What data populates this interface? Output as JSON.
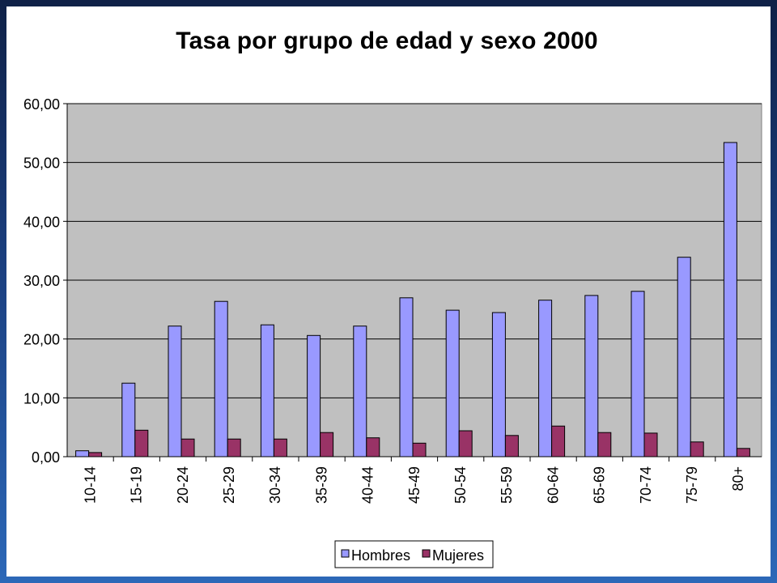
{
  "chart_data": {
    "type": "bar",
    "title": "Tasa por grupo de edad y sexo 2000",
    "categories": [
      "10-14",
      "15-19",
      "20-24",
      "25-29",
      "30-34",
      "35-39",
      "40-44",
      "45-49",
      "50-54",
      "55-59",
      "60-64",
      "65-69",
      "70-74",
      "75-79",
      "80+"
    ],
    "series": [
      {
        "name": "Hombres",
        "color": "#9999ff",
        "values": [
          1.0,
          12.5,
          22.2,
          26.4,
          22.4,
          20.6,
          22.2,
          27.0,
          24.9,
          24.5,
          26.6,
          27.4,
          28.1,
          33.9,
          53.4
        ]
      },
      {
        "name": "Mujeres",
        "color": "#993366",
        "values": [
          0.7,
          4.5,
          3.0,
          3.0,
          3.0,
          4.1,
          3.2,
          2.3,
          4.4,
          3.6,
          5.2,
          4.1,
          4.0,
          2.5,
          1.4
        ]
      }
    ],
    "ylim": [
      0,
      60
    ],
    "yticks": [
      0,
      10,
      20,
      30,
      40,
      50,
      60
    ],
    "ytick_labels": [
      "0,00",
      "10,00",
      "20,00",
      "30,00",
      "40,00",
      "50,00",
      "60,00"
    ],
    "xlabel": "",
    "ylabel": "",
    "grid": true,
    "legend_position": "bottom",
    "plot_background": "#c0c0c0"
  }
}
